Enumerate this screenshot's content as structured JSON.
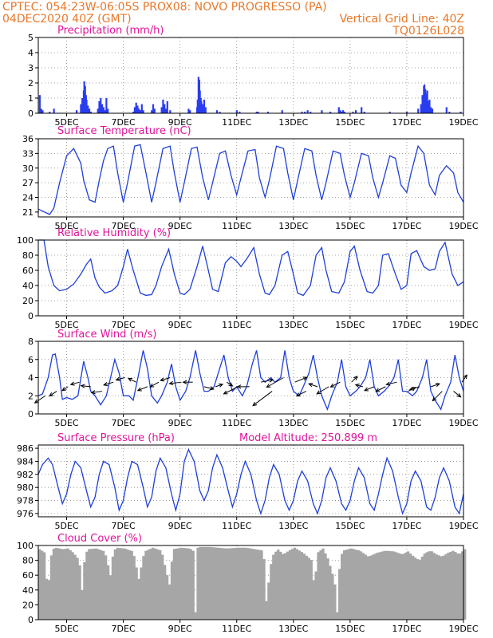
{
  "header": {
    "left_line1": "CPTEC:    054:23W-06:05S    PROX08: NOVO PROGRESSO (PA)",
    "left_line2": "04DEC2020  40Z  (GMT)",
    "right_line2": "Vertical Grid Line: 40Z",
    "right_line3": "TQ0126L028"
  },
  "x_axis": {
    "range_days": [
      4.0,
      19.0
    ],
    "tick_days": [
      5,
      7,
      9,
      11,
      13,
      15,
      17,
      19
    ],
    "tick_labels": [
      "5DEC",
      "7DEC",
      "9DEC",
      "11DEC",
      "13DEC",
      "15DEC",
      "17DEC",
      "19DEC"
    ]
  },
  "colors": {
    "line": "#1f3fd9",
    "bar": "#2a3cf0",
    "cloud": "#a6a6a6",
    "title": "#e0159a",
    "header": "#e8782a"
  },
  "chart_data": [
    {
      "type": "bar",
      "title": "Precipitation (mm/h)",
      "ylim": [
        0,
        5
      ],
      "yticks": [
        "0",
        "1",
        "2",
        "3",
        "4",
        "5"
      ],
      "x": [
        4.05,
        4.1,
        4.15,
        4.4,
        4.55,
        5.35,
        5.5,
        5.55,
        5.6,
        5.62,
        5.65,
        5.68,
        5.7,
        5.75,
        5.8,
        5.85,
        6.1,
        6.15,
        6.2,
        6.25,
        6.3,
        6.35,
        6.4,
        6.45,
        7.35,
        7.4,
        7.45,
        7.5,
        7.55,
        7.6,
        7.65,
        7.7,
        8.0,
        8.05,
        8.1,
        8.35,
        8.4,
        8.45,
        8.5,
        8.55,
        8.65,
        9.3,
        9.35,
        9.6,
        9.62,
        9.65,
        9.68,
        9.7,
        9.73,
        9.75,
        9.8,
        9.85,
        9.9,
        10.3,
        10.4,
        11.0,
        11.1,
        11.7,
        11.75,
        12.1,
        12.6,
        13.3,
        13.4,
        13.5,
        13.6,
        14.0,
        14.3,
        14.6,
        14.65,
        14.7,
        14.75,
        14.8,
        15.1,
        15.2,
        15.4,
        15.5,
        16.4,
        17.0,
        17.4,
        17.5,
        17.55,
        17.6,
        17.62,
        17.65,
        17.68,
        17.7,
        17.72,
        17.75,
        17.8,
        17.85,
        17.9,
        18.4,
        18.5,
        18.9
      ],
      "values": [
        1.2,
        0.3,
        0.2,
        0.1,
        0.3,
        0.2,
        0.6,
        1.0,
        1.5,
        2.1,
        1.8,
        1.2,
        0.9,
        0.5,
        0.3,
        0.1,
        0.3,
        0.8,
        1.0,
        0.6,
        0.4,
        0.2,
        1.0,
        0.3,
        0.1,
        0.4,
        0.7,
        0.5,
        0.3,
        0.2,
        0.6,
        0.2,
        0.2,
        0.6,
        0.3,
        0.4,
        0.9,
        0.6,
        0.3,
        0.8,
        0.2,
        0.3,
        0.2,
        0.4,
        0.9,
        2.4,
        2.2,
        1.5,
        1.0,
        0.8,
        0.6,
        0.9,
        0.4,
        0.2,
        0.1,
        0.2,
        0.1,
        0.1,
        0.1,
        0.1,
        0.2,
        0.1,
        0.1,
        0.2,
        0.1,
        0.2,
        0.1,
        0.4,
        0.2,
        0.1,
        0.2,
        0.1,
        0.1,
        0.2,
        0.4,
        0.1,
        0.1,
        0.1,
        0.3,
        0.6,
        1.2,
        1.8,
        1.9,
        1.6,
        1.3,
        1.0,
        1.5,
        0.8,
        0.9,
        0.4,
        0.3,
        0.4,
        0.1,
        0.1
      ]
    },
    {
      "type": "line",
      "title": "Surface Temperature (nC)",
      "ylim": [
        20,
        36
      ],
      "yticks": [
        "21",
        "24",
        "27",
        "30",
        "33",
        "36"
      ],
      "ytick_values": [
        21,
        24,
        27,
        30,
        33,
        36
      ],
      "x": [
        4.0,
        4.4,
        4.55,
        4.75,
        5.0,
        5.25,
        5.5,
        5.6,
        5.8,
        6.0,
        6.15,
        6.3,
        6.45,
        6.65,
        6.8,
        7.0,
        7.15,
        7.4,
        7.6,
        7.8,
        8.0,
        8.15,
        8.4,
        8.65,
        8.8,
        9.0,
        9.15,
        9.4,
        9.6,
        9.8,
        10.0,
        10.15,
        10.4,
        10.6,
        10.8,
        11.0,
        11.15,
        11.4,
        11.65,
        11.8,
        12.0,
        12.15,
        12.4,
        12.65,
        12.8,
        13.0,
        13.15,
        13.4,
        13.65,
        13.8,
        14.0,
        14.15,
        14.4,
        14.65,
        14.8,
        15.0,
        15.15,
        15.4,
        15.65,
        15.8,
        16.0,
        16.15,
        16.4,
        16.6,
        16.8,
        17.0,
        17.15,
        17.4,
        17.6,
        17.8,
        18.0,
        18.15,
        18.4,
        18.65,
        18.8,
        19.0
      ],
      "values": [
        21.6,
        20.5,
        21.8,
        27.0,
        32.5,
        34.0,
        31.0,
        27.5,
        23.5,
        23.0,
        27.5,
        31.5,
        34.0,
        34.5,
        29.0,
        23.0,
        27.0,
        34.5,
        34.8,
        29.0,
        23.0,
        27.0,
        34.0,
        34.5,
        29.0,
        23.0,
        27.0,
        34.0,
        34.3,
        28.0,
        23.5,
        27.0,
        33.0,
        33.5,
        28.5,
        24.5,
        28.0,
        33.5,
        33.8,
        28.0,
        24.0,
        27.5,
        34.5,
        34.0,
        29.0,
        23.5,
        27.5,
        34.0,
        33.5,
        28.5,
        23.5,
        27.0,
        33.5,
        33.0,
        28.5,
        24.0,
        27.0,
        33.0,
        32.5,
        28.0,
        24.0,
        27.0,
        32.5,
        32.0,
        26.5,
        25.0,
        29.0,
        34.5,
        33.0,
        26.5,
        24.5,
        28.5,
        30.5,
        29.0,
        25.0,
        23.0
      ]
    },
    {
      "type": "line",
      "title": "Relative Humidity (%)",
      "ylim": [
        0,
        100
      ],
      "yticks": [
        "0",
        "20",
        "40",
        "60",
        "80",
        "100"
      ],
      "ytick_values": [
        0,
        20,
        40,
        60,
        80,
        100
      ],
      "x": [
        4.0,
        4.2,
        4.35,
        4.55,
        4.75,
        5.0,
        5.25,
        5.5,
        5.7,
        5.85,
        6.0,
        6.15,
        6.35,
        6.6,
        6.8,
        7.0,
        7.15,
        7.35,
        7.6,
        7.8,
        8.0,
        8.15,
        8.35,
        8.6,
        8.8,
        9.0,
        9.15,
        9.35,
        9.6,
        9.8,
        10.0,
        10.15,
        10.35,
        10.6,
        10.8,
        11.0,
        11.15,
        11.35,
        11.6,
        11.8,
        12.0,
        12.15,
        12.35,
        12.6,
        12.8,
        13.0,
        13.15,
        13.35,
        13.6,
        13.8,
        14.0,
        14.15,
        14.35,
        14.6,
        14.8,
        15.0,
        15.15,
        15.35,
        15.6,
        15.8,
        16.0,
        16.15,
        16.35,
        16.6,
        16.8,
        17.0,
        17.15,
        17.35,
        17.6,
        17.8,
        18.0,
        18.15,
        18.35,
        18.6,
        18.8,
        19.0
      ],
      "values": [
        100,
        100,
        65,
        40,
        33,
        35,
        42,
        55,
        68,
        75,
        50,
        38,
        30,
        33,
        40,
        65,
        88,
        60,
        30,
        27,
        28,
        40,
        65,
        88,
        55,
        30,
        28,
        35,
        65,
        92,
        60,
        35,
        32,
        70,
        78,
        72,
        65,
        75,
        90,
        55,
        30,
        28,
        40,
        80,
        85,
        55,
        30,
        27,
        40,
        80,
        90,
        60,
        32,
        30,
        45,
        85,
        92,
        60,
        32,
        30,
        40,
        80,
        82,
        55,
        35,
        40,
        82,
        86,
        65,
        60,
        62,
        85,
        97,
        55,
        40,
        45
      ]
    },
    {
      "type": "line",
      "title": "Surface Wind (m/s)",
      "ylim": [
        0,
        8
      ],
      "yticks": [
        "0",
        "2",
        "4",
        "6",
        "8"
      ],
      "ytick_values": [
        0,
        2,
        4,
        6,
        8
      ],
      "x": [
        4.0,
        4.15,
        4.35,
        4.5,
        4.6,
        4.75,
        4.85,
        5.0,
        5.2,
        5.4,
        5.6,
        5.75,
        5.85,
        6.0,
        6.2,
        6.4,
        6.55,
        6.7,
        6.85,
        7.0,
        7.2,
        7.35,
        7.55,
        7.7,
        7.85,
        8.0,
        8.2,
        8.35,
        8.55,
        8.7,
        8.85,
        9.0,
        9.2,
        9.35,
        9.55,
        9.7,
        9.85,
        10.0,
        10.2,
        10.35,
        10.55,
        10.7,
        10.85,
        11.0,
        11.2,
        11.35,
        11.55,
        11.7,
        11.85,
        12.0,
        12.2,
        12.35,
        12.55,
        12.7,
        12.85,
        13.0,
        13.2,
        13.35,
        13.55,
        13.7,
        13.85,
        14.0,
        14.2,
        14.35,
        14.55,
        14.7,
        14.85,
        15.0,
        15.2,
        15.35,
        15.55,
        15.7,
        15.85,
        16.0,
        16.2,
        16.35,
        16.55,
        16.7,
        16.85,
        17.0,
        17.2,
        17.35,
        17.55,
        17.7,
        17.85,
        18.0,
        18.2,
        18.35,
        18.55,
        18.7,
        18.85,
        19.0
      ],
      "values": [
        2.0,
        2.2,
        4.0,
        6.5,
        6.6,
        4.0,
        1.6,
        1.8,
        1.6,
        2.0,
        5.8,
        4.0,
        2.5,
        2.0,
        1.0,
        2.0,
        4.0,
        6.0,
        4.5,
        2.0,
        2.0,
        1.5,
        4.5,
        7.0,
        5.0,
        2.0,
        1.2,
        2.0,
        3.5,
        5.5,
        3.0,
        1.5,
        2.5,
        4.0,
        7.0,
        4.5,
        2.5,
        2.5,
        3.0,
        4.5,
        6.5,
        4.0,
        2.5,
        3.0,
        2.0,
        3.0,
        5.5,
        7.0,
        4.0,
        3.5,
        4.0,
        3.5,
        4.0,
        7.0,
        4.0,
        2.5,
        2.0,
        3.0,
        4.5,
        6.5,
        4.0,
        2.0,
        0.5,
        2.0,
        3.5,
        6.0,
        3.0,
        2.0,
        2.5,
        3.0,
        4.0,
        6.0,
        3.0,
        2.0,
        2.5,
        3.0,
        4.0,
        6.0,
        2.5,
        2.5,
        2.0,
        2.5,
        4.0,
        6.0,
        2.5,
        1.5,
        0.5,
        2.0,
        3.5,
        6.5,
        4.0,
        2.5
      ]
    },
    {
      "type": "line",
      "title": "Surface Pressure (hPa)",
      "annotation": "Model Altitude: 250.899  m",
      "ylim": [
        975.5,
        986.5
      ],
      "yticks": [
        "976",
        "978",
        "980",
        "982",
        "984",
        "986"
      ],
      "ytick_values": [
        976,
        978,
        980,
        982,
        984,
        986
      ],
      "x": [
        4.0,
        4.15,
        4.35,
        4.5,
        4.7,
        4.85,
        5.0,
        5.15,
        5.3,
        5.5,
        5.7,
        5.85,
        6.0,
        6.15,
        6.3,
        6.5,
        6.7,
        6.85,
        7.0,
        7.15,
        7.3,
        7.5,
        7.7,
        7.85,
        8.0,
        8.15,
        8.3,
        8.5,
        8.7,
        8.85,
        9.0,
        9.15,
        9.3,
        9.5,
        9.7,
        9.85,
        10.0,
        10.15,
        10.3,
        10.5,
        10.7,
        10.85,
        11.0,
        11.15,
        11.3,
        11.5,
        11.7,
        11.85,
        12.0,
        12.15,
        12.3,
        12.5,
        12.7,
        12.85,
        13.0,
        13.15,
        13.3,
        13.5,
        13.7,
        13.85,
        14.0,
        14.15,
        14.3,
        14.5,
        14.7,
        14.85,
        15.0,
        15.15,
        15.3,
        15.5,
        15.7,
        15.85,
        16.0,
        16.15,
        16.3,
        16.5,
        16.7,
        16.85,
        17.0,
        17.15,
        17.3,
        17.5,
        17.7,
        17.85,
        18.0,
        18.15,
        18.3,
        18.5,
        18.7,
        18.85,
        19.0
      ],
      "values": [
        982.0,
        983.5,
        984.5,
        983.5,
        980.0,
        977.5,
        979.0,
        982.0,
        984.0,
        983.0,
        979.5,
        977.0,
        978.5,
        982.0,
        984.0,
        983.5,
        980.0,
        976.5,
        978.0,
        981.5,
        984.0,
        983.5,
        980.0,
        977.0,
        978.5,
        982.5,
        984.5,
        983.0,
        979.0,
        976.5,
        979.0,
        984.0,
        985.8,
        984.0,
        979.5,
        978.0,
        979.5,
        983.0,
        985.0,
        983.0,
        979.5,
        977.0,
        979.0,
        982.0,
        984.0,
        982.0,
        978.0,
        976.0,
        978.0,
        981.5,
        983.5,
        982.0,
        978.0,
        976.5,
        978.0,
        981.0,
        982.5,
        981.0,
        977.5,
        976.0,
        978.0,
        981.5,
        983.0,
        981.0,
        977.5,
        976.5,
        978.0,
        981.0,
        983.0,
        981.5,
        977.5,
        976.5,
        979.0,
        982.0,
        984.5,
        982.5,
        978.5,
        976.0,
        977.5,
        981.0,
        982.5,
        981.0,
        977.0,
        976.5,
        978.5,
        981.5,
        983.0,
        981.0,
        977.0,
        976.0,
        979.0
      ]
    },
    {
      "type": "area",
      "title": "Cloud Cover (%)",
      "ylim": [
        0,
        100
      ],
      "yticks": [
        "0",
        "20",
        "40",
        "60",
        "80",
        "100"
      ],
      "ytick_values": [
        0,
        20,
        40,
        60,
        80,
        100
      ],
      "x": [
        4.0,
        4.2,
        4.3,
        4.35,
        4.45,
        4.6,
        4.8,
        5.0,
        5.2,
        5.4,
        5.5,
        5.6,
        5.7,
        6.0,
        6.3,
        6.5,
        6.6,
        6.7,
        7.0,
        7.3,
        7.5,
        7.7,
        8.0,
        8.3,
        8.5,
        8.6,
        8.7,
        9.0,
        9.3,
        9.45,
        9.5,
        9.55,
        9.6,
        9.7,
        10.0,
        10.3,
        10.6,
        11.0,
        11.3,
        11.6,
        11.9,
        12.0,
        12.2,
        12.4,
        12.6,
        12.8,
        13.0,
        13.3,
        13.6,
        13.7,
        13.8,
        14.0,
        14.2,
        14.3,
        14.4,
        14.5,
        14.6,
        14.7,
        15.0,
        15.3,
        15.6,
        15.9,
        16.2,
        16.5,
        16.8,
        17.0,
        17.2,
        17.4,
        17.6,
        17.8,
        18.0,
        18.2,
        18.4,
        18.6,
        18.8,
        19.0
      ],
      "values": [
        95,
        90,
        20,
        70,
        95,
        97,
        95,
        96,
        90,
        80,
        40,
        85,
        95,
        96,
        92,
        60,
        90,
        97,
        96,
        92,
        55,
        92,
        97,
        93,
        60,
        45,
        95,
        97,
        96,
        92,
        10,
        95,
        98,
        98,
        98,
        97,
        96,
        97,
        97,
        95,
        93,
        25,
        85,
        95,
        88,
        93,
        97,
        90,
        80,
        40,
        90,
        96,
        80,
        65,
        55,
        10,
        80,
        93,
        96,
        93,
        85,
        90,
        93,
        92,
        88,
        92,
        85,
        80,
        90,
        93,
        88,
        85,
        90,
        93,
        88,
        95
      ]
    }
  ],
  "wind_arrows": {
    "x": [
      4.25,
      4.65,
      5.05,
      5.45,
      5.85,
      6.25,
      6.65,
      7.05,
      7.45,
      7.85,
      8.25,
      8.65,
      9.05,
      9.45,
      9.85,
      10.25,
      10.65,
      11.05,
      11.45,
      11.85,
      12.25,
      12.65,
      13.05,
      13.45,
      13.85,
      14.25,
      14.65,
      15.05,
      15.45,
      15.85,
      16.25,
      16.65,
      17.05,
      17.45,
      17.85,
      18.25,
      18.65,
      18.95
    ],
    "y": [
      2.0,
      2.5,
      3.0,
      3.5,
      3.0,
      2.5,
      3.5,
      4.0,
      3.5,
      3.0,
      3.5,
      4.0,
      3.5,
      3.5,
      3.0,
      3.0,
      3.5,
      3.0,
      3.0,
      3.5,
      2.5,
      4.0,
      3.5,
      2.5,
      3.0,
      3.0,
      3.5,
      3.5,
      3.0,
      3.0,
      3.0,
      3.5,
      2.5,
      3.0,
      3.0,
      2.5,
      2.5,
      3.5
    ],
    "u": [
      -2.2,
      -1.5,
      -1.2,
      -1.8,
      -2.0,
      -2.2,
      -2.0,
      -1.8,
      -1.6,
      -2.0,
      -1.8,
      -2.0,
      -2.5,
      -2.0,
      2.0,
      1.5,
      1.2,
      -3.0,
      -2.5,
      2.5,
      -4.0,
      -3.5,
      2.5,
      -2.0,
      -1.8,
      -2.5,
      -2.0,
      1.2,
      -1.5,
      -2.0,
      -2.0,
      -2.2,
      1.5,
      -2.0,
      1.8,
      -2.0,
      1.5,
      1.0
    ],
    "v": [
      -1.5,
      -1.0,
      -0.8,
      -0.5,
      0.2,
      -0.3,
      -0.6,
      -0.5,
      0.8,
      -0.8,
      -1.0,
      -0.6,
      -0.3,
      0.0,
      -0.5,
      0.5,
      -0.8,
      -1.5,
      0.0,
      0.5,
      -3.0,
      -2.0,
      1.0,
      -1.0,
      0.6,
      -1.5,
      -1.0,
      1.2,
      0.4,
      -0.8,
      -1.0,
      -0.5,
      0.8,
      -0.6,
      0.6,
      -2.0,
      -1.2,
      1.5
    ]
  }
}
